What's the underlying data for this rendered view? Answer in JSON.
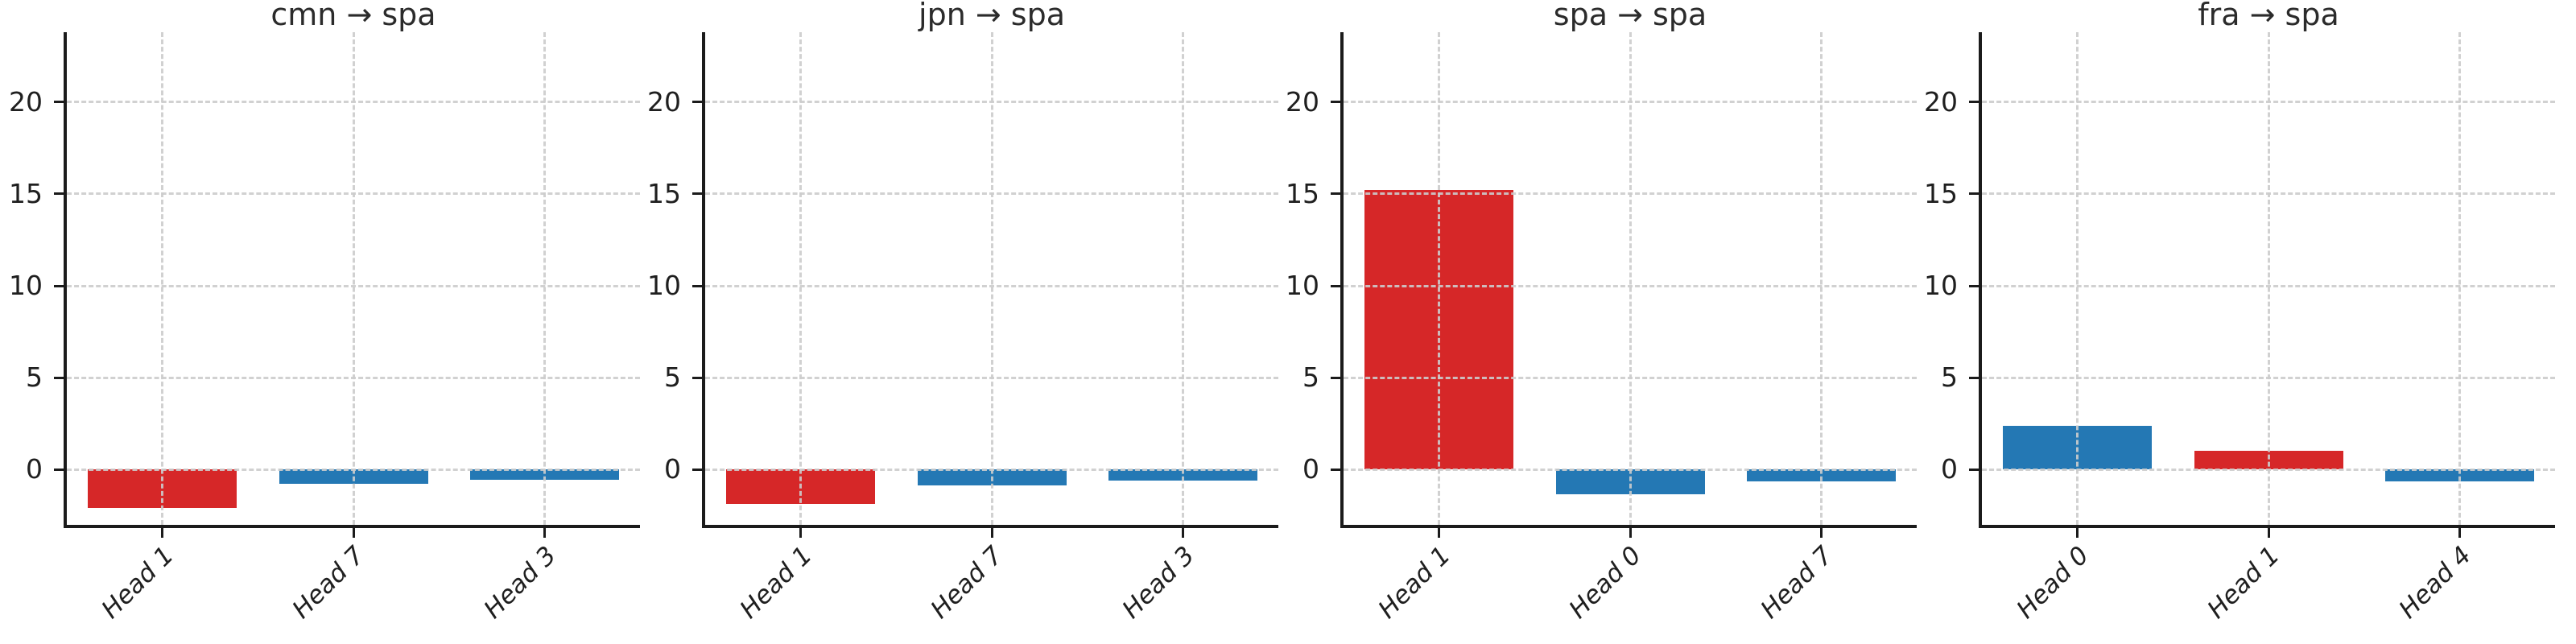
{
  "figure": {
    "kind": "matplotlib-style bar chart figure, 1 row x 4 columns, shared y axis",
    "background": "#ffffff"
  },
  "palette": {
    "red": "#d62728",
    "blue": "#2478b4",
    "spine": "#1b1b1b",
    "grid": "#cccccc",
    "text": "#2b2b2b"
  },
  "chart_data": [
    {
      "type": "bar",
      "title": "cmn → spa",
      "categories": [
        "Head 1",
        "Head 7",
        "Head 3"
      ],
      "values": [
        -2.1,
        -0.75,
        -0.55
      ],
      "bar_colors": [
        "red",
        "blue",
        "blue"
      ],
      "yticks": [
        0,
        5,
        10,
        15,
        20
      ],
      "ylim": [
        -3.0,
        23.8
      ],
      "xlabel": "",
      "ylabel": "",
      "grid": "dashed x+y gridlines drawn above bars",
      "xtick_style": "italic, rotated 45deg"
    },
    {
      "type": "bar",
      "title": "jpn → spa",
      "categories": [
        "Head 1",
        "Head 7",
        "Head 3"
      ],
      "values": [
        -1.85,
        -0.85,
        -0.6
      ],
      "bar_colors": [
        "red",
        "blue",
        "blue"
      ],
      "yticks": [
        0,
        5,
        10,
        15,
        20
      ],
      "ylim": [
        -3.0,
        23.8
      ],
      "xlabel": "",
      "ylabel": "",
      "grid": "dashed x+y gridlines drawn above bars",
      "xtick_style": "italic, rotated 45deg"
    },
    {
      "type": "bar",
      "title": "spa → spa",
      "categories": [
        "Head 1",
        "Head 0",
        "Head 7"
      ],
      "values": [
        15.2,
        -1.35,
        -0.65
      ],
      "bar_colors": [
        "red",
        "blue",
        "blue"
      ],
      "yticks": [
        0,
        5,
        10,
        15,
        20
      ],
      "ylim": [
        -3.0,
        23.8
      ],
      "xlabel": "",
      "ylabel": "",
      "grid": "dashed x+y gridlines drawn above bars",
      "xtick_style": "italic, rotated 45deg"
    },
    {
      "type": "bar",
      "title": "fra → spa",
      "categories": [
        "Head 0",
        "Head 1",
        "Head 4"
      ],
      "values": [
        2.4,
        1.05,
        -0.65
      ],
      "bar_colors": [
        "blue",
        "red",
        "blue"
      ],
      "yticks": [
        0,
        5,
        10,
        15,
        20
      ],
      "ylim": [
        -3.0,
        23.8
      ],
      "xlabel": "",
      "ylabel": "",
      "grid": "dashed x+y gridlines drawn above bars",
      "xtick_style": "italic, rotated 45deg"
    }
  ]
}
